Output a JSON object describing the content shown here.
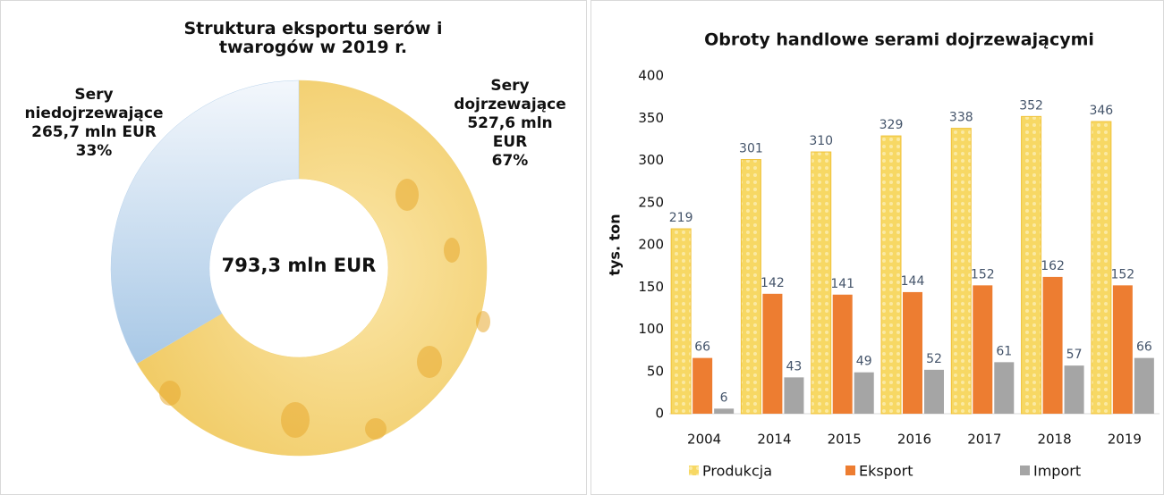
{
  "chart_data": [
    {
      "type": "donut",
      "title": "Struktura eksportu serów i twarogów w 2019 r.",
      "categories": [
        "Sery dojrzewające",
        "Sery niedojrzewające"
      ],
      "values": [
        527.6,
        265.7
      ],
      "value_labels": [
        "527,6 mln EUR",
        "265,7 mln EUR"
      ],
      "shares": [
        67,
        33
      ],
      "share_labels": [
        "67%",
        "33%"
      ],
      "colors": [
        "#f3d47c",
        "#b9d3ec"
      ],
      "total": 793.3,
      "total_label": "793,3 mln EUR"
    },
    {
      "type": "bar",
      "title": "Obroty handlowe serami dojrzewającymi",
      "y_label": "tys. ton",
      "categories": [
        "2004",
        "2014",
        "2015",
        "2016",
        "2017",
        "2018",
        "2019"
      ],
      "series": [
        {
          "name": "Produkcja",
          "color": "#f5cf55",
          "values": [
            219,
            301,
            310,
            329,
            338,
            352,
            346
          ]
        },
        {
          "name": "Eksport",
          "color": "#ed7d31",
          "values": [
            66,
            142,
            141,
            144,
            152,
            162,
            152
          ]
        },
        {
          "name": "Import",
          "color": "#a5a5a5",
          "values": [
            6,
            43,
            49,
            52,
            61,
            57,
            66
          ]
        }
      ],
      "ylim": [
        0,
        400
      ],
      "yticks": [
        0,
        50,
        100,
        150,
        200,
        250,
        300,
        350,
        400
      ],
      "legend": "bottom"
    }
  ]
}
